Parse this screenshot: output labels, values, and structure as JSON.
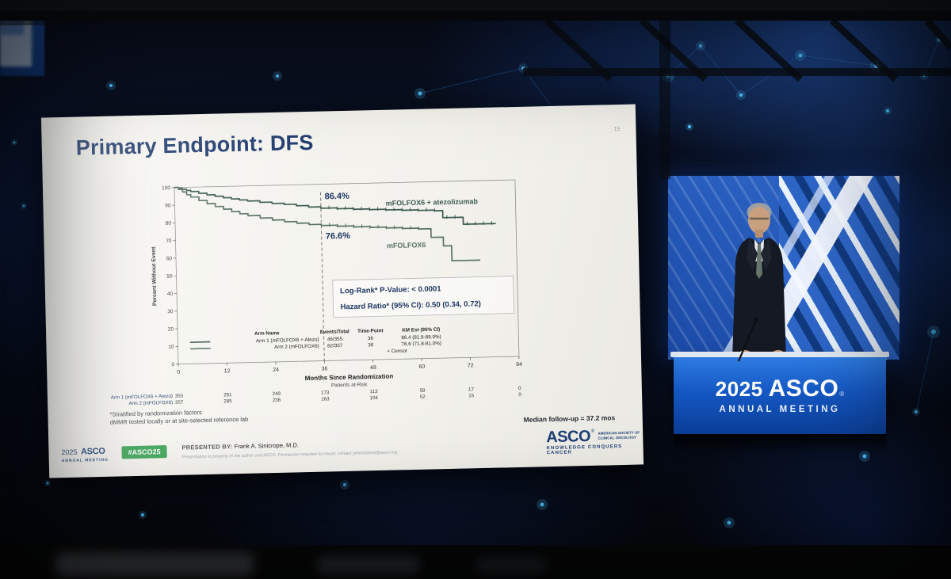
{
  "scene": {
    "podium": {
      "year": "2025",
      "org": "ASCO",
      "reg": "®",
      "line2": "ANNUAL MEETING"
    }
  },
  "slide": {
    "title": "Primary Endpoint: DFS",
    "page_number": "15",
    "footnote_line1": "*Stratified by randomization factors",
    "footnote_line2": "dMMR tested locally or at site-selected reference lab",
    "median_followup": "Median follow-up = 37.2 mos",
    "footer": {
      "meeting_year": "2025",
      "meeting_org": "ASCO",
      "meeting_sub": "ANNUAL MEETING",
      "hashtag": "#ASCO25",
      "presented_label": "PRESENTED BY:",
      "presented_name": "Frank A. Sinicrope, M.D.",
      "disclaimer": "Presentation is property of the author and ASCO. Permission required for reuse; contact permissions@asco.org.",
      "asco_logo": "ASCO",
      "asco_reg": "®",
      "asco_sub1": "AMERICAN SOCIETY OF",
      "asco_sub2": "CLINICAL ONCOLOGY",
      "asco_tagline": "KNOWLEDGE CONQUERS CANCER"
    }
  },
  "chart_data": {
    "type": "line",
    "variant": "kaplan-meier",
    "title": "",
    "xlabel": "Months Since Randomization",
    "ylabel": "Percent Without Event",
    "xlim": [
      0,
      84
    ],
    "ylim": [
      0,
      100
    ],
    "xticks": [
      0,
      12,
      24,
      36,
      48,
      60,
      72,
      84
    ],
    "yticks": [
      0,
      10,
      20,
      30,
      40,
      50,
      60,
      70,
      80,
      90,
      100
    ],
    "grid": false,
    "legend_position": "inside-bottom",
    "dashed_line_x": 36,
    "series": [
      {
        "name": "mFOLFOX6 + atezolizumab",
        "color": "#3c5b51",
        "x": [
          0,
          1,
          2,
          3,
          4,
          6,
          8,
          10,
          12,
          14,
          16,
          18,
          21,
          24,
          27,
          30,
          33,
          36,
          40,
          44,
          48,
          52,
          56,
          60,
          64,
          66,
          71,
          79
        ],
        "y": [
          100,
          99.5,
          98.9,
          98.2,
          97.5,
          96.4,
          95.4,
          94.5,
          93.6,
          92.8,
          92.1,
          91.4,
          90.5,
          89.7,
          89,
          88.1,
          87.2,
          86.4,
          85.9,
          85.4,
          85,
          84.6,
          84.2,
          83.9,
          83.5,
          79.5,
          75.5,
          75.5
        ],
        "censor_x": [
          38,
          40,
          42,
          44,
          46,
          48,
          50,
          52,
          54,
          56,
          58,
          60,
          62,
          64,
          67,
          69,
          72,
          74,
          76,
          78
        ],
        "label_pos": {
          "x": 52,
          "y": 87
        }
      },
      {
        "name": "mFOLFOX6",
        "color": "#5a7265",
        "x": [
          0,
          1,
          2,
          3,
          4,
          6,
          8,
          10,
          12,
          14,
          16,
          18,
          21,
          24,
          27,
          30,
          33,
          36,
          40,
          44,
          48,
          52,
          56,
          60,
          63,
          66,
          68,
          75
        ],
        "y": [
          100,
          98.9,
          97.4,
          95.8,
          94.4,
          92.3,
          90.4,
          88.7,
          87.1,
          85.6,
          84.3,
          83.1,
          81.6,
          80.3,
          79.2,
          78.2,
          77.3,
          76.6,
          76,
          75.4,
          74.9,
          74.4,
          73.9,
          73.4,
          68.5,
          63.5,
          55,
          55
        ],
        "censor_x": [
          38,
          40,
          42,
          44,
          46,
          48,
          50,
          52,
          54,
          56,
          58,
          60
        ],
        "label_pos": {
          "x": 52,
          "y": 63
        }
      }
    ],
    "annotations": [
      {
        "text": "86.4%",
        "x": 36.6,
        "y": 91.5
      },
      {
        "text": "76.6%",
        "x": 36.6,
        "y": 69
      }
    ],
    "stats_box": {
      "line1": "Log-Rank* P-Value: < 0.0001",
      "line2": "Hazard Ratio* (95% CI): 0.50 (0.34, 0.72)"
    },
    "legend_table": {
      "headers": [
        "Arm Name",
        "Events/Total",
        "Time-Point",
        "KM Est (95% CI)"
      ],
      "rows": [
        [
          "Arm 1 (mFOLFOX6 + Atezo)",
          "46/355",
          "36",
          "86.4 (81.8-89.9%)"
        ],
        [
          "Arm 2 (mFOLFOX6)",
          "82/357",
          "36",
          "76.6 (71.8-81.0%)"
        ]
      ],
      "censor_label": "+ Censor"
    },
    "at_risk": {
      "label": "Patients at-Risk",
      "rows": [
        {
          "name": "Arm 1 (mFOLFOX6 + Atezo)",
          "counts": [
            355,
            291,
            249,
            173,
            113,
            58,
            17,
            0
          ]
        },
        {
          "name": "Arm 2 (mFOLFOX6)",
          "counts": [
            357,
            285,
            236,
            163,
            104,
            52,
            15,
            0
          ]
        }
      ]
    }
  }
}
